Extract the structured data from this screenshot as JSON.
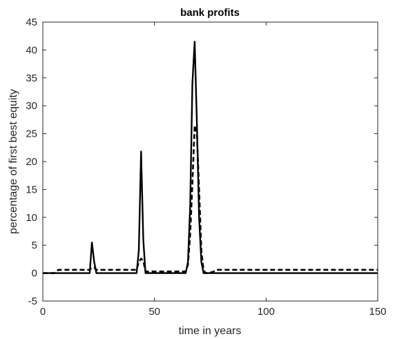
{
  "chart_data": {
    "type": "line",
    "title": "bank profits",
    "xlabel": "time in years",
    "ylabel": "percentage of first best equity",
    "xlim": [
      0,
      150
    ],
    "ylim": [
      -5,
      45
    ],
    "xticks": [
      0,
      50,
      100,
      150
    ],
    "yticks": [
      -5,
      0,
      5,
      10,
      15,
      20,
      25,
      30,
      35,
      40,
      45
    ],
    "grid": false,
    "legend": "none",
    "box": true,
    "series": [
      {
        "style": "solid",
        "color": "#000000",
        "x": [
          0,
          21,
          22,
          23,
          24,
          42,
          43,
          44,
          45,
          46,
          64,
          65,
          66,
          67,
          68,
          69,
          70,
          71,
          72,
          150
        ],
        "y": [
          0,
          0,
          5.5,
          2.0,
          0,
          0,
          4.0,
          21.8,
          6.0,
          0,
          0,
          2.0,
          12.0,
          34.0,
          41.5,
          27.0,
          10.0,
          2.0,
          0,
          0
        ]
      },
      {
        "style": "dashed",
        "color": "#000000",
        "x": [
          0,
          5,
          7,
          21,
          22,
          23,
          24,
          42,
          43,
          44,
          45,
          46,
          47,
          64,
          65,
          66,
          67,
          68,
          69,
          70,
          71,
          72,
          73,
          74,
          76,
          78,
          150
        ],
        "y": [
          0,
          0,
          0.6,
          0.6,
          1.0,
          1.0,
          0.6,
          0.6,
          2.0,
          2.6,
          2.2,
          0.3,
          0.3,
          0.3,
          1.5,
          7.0,
          16.0,
          26.5,
          25.0,
          15.0,
          4.0,
          0.5,
          0,
          0,
          0.2,
          0.6,
          0.6
        ]
      }
    ]
  }
}
